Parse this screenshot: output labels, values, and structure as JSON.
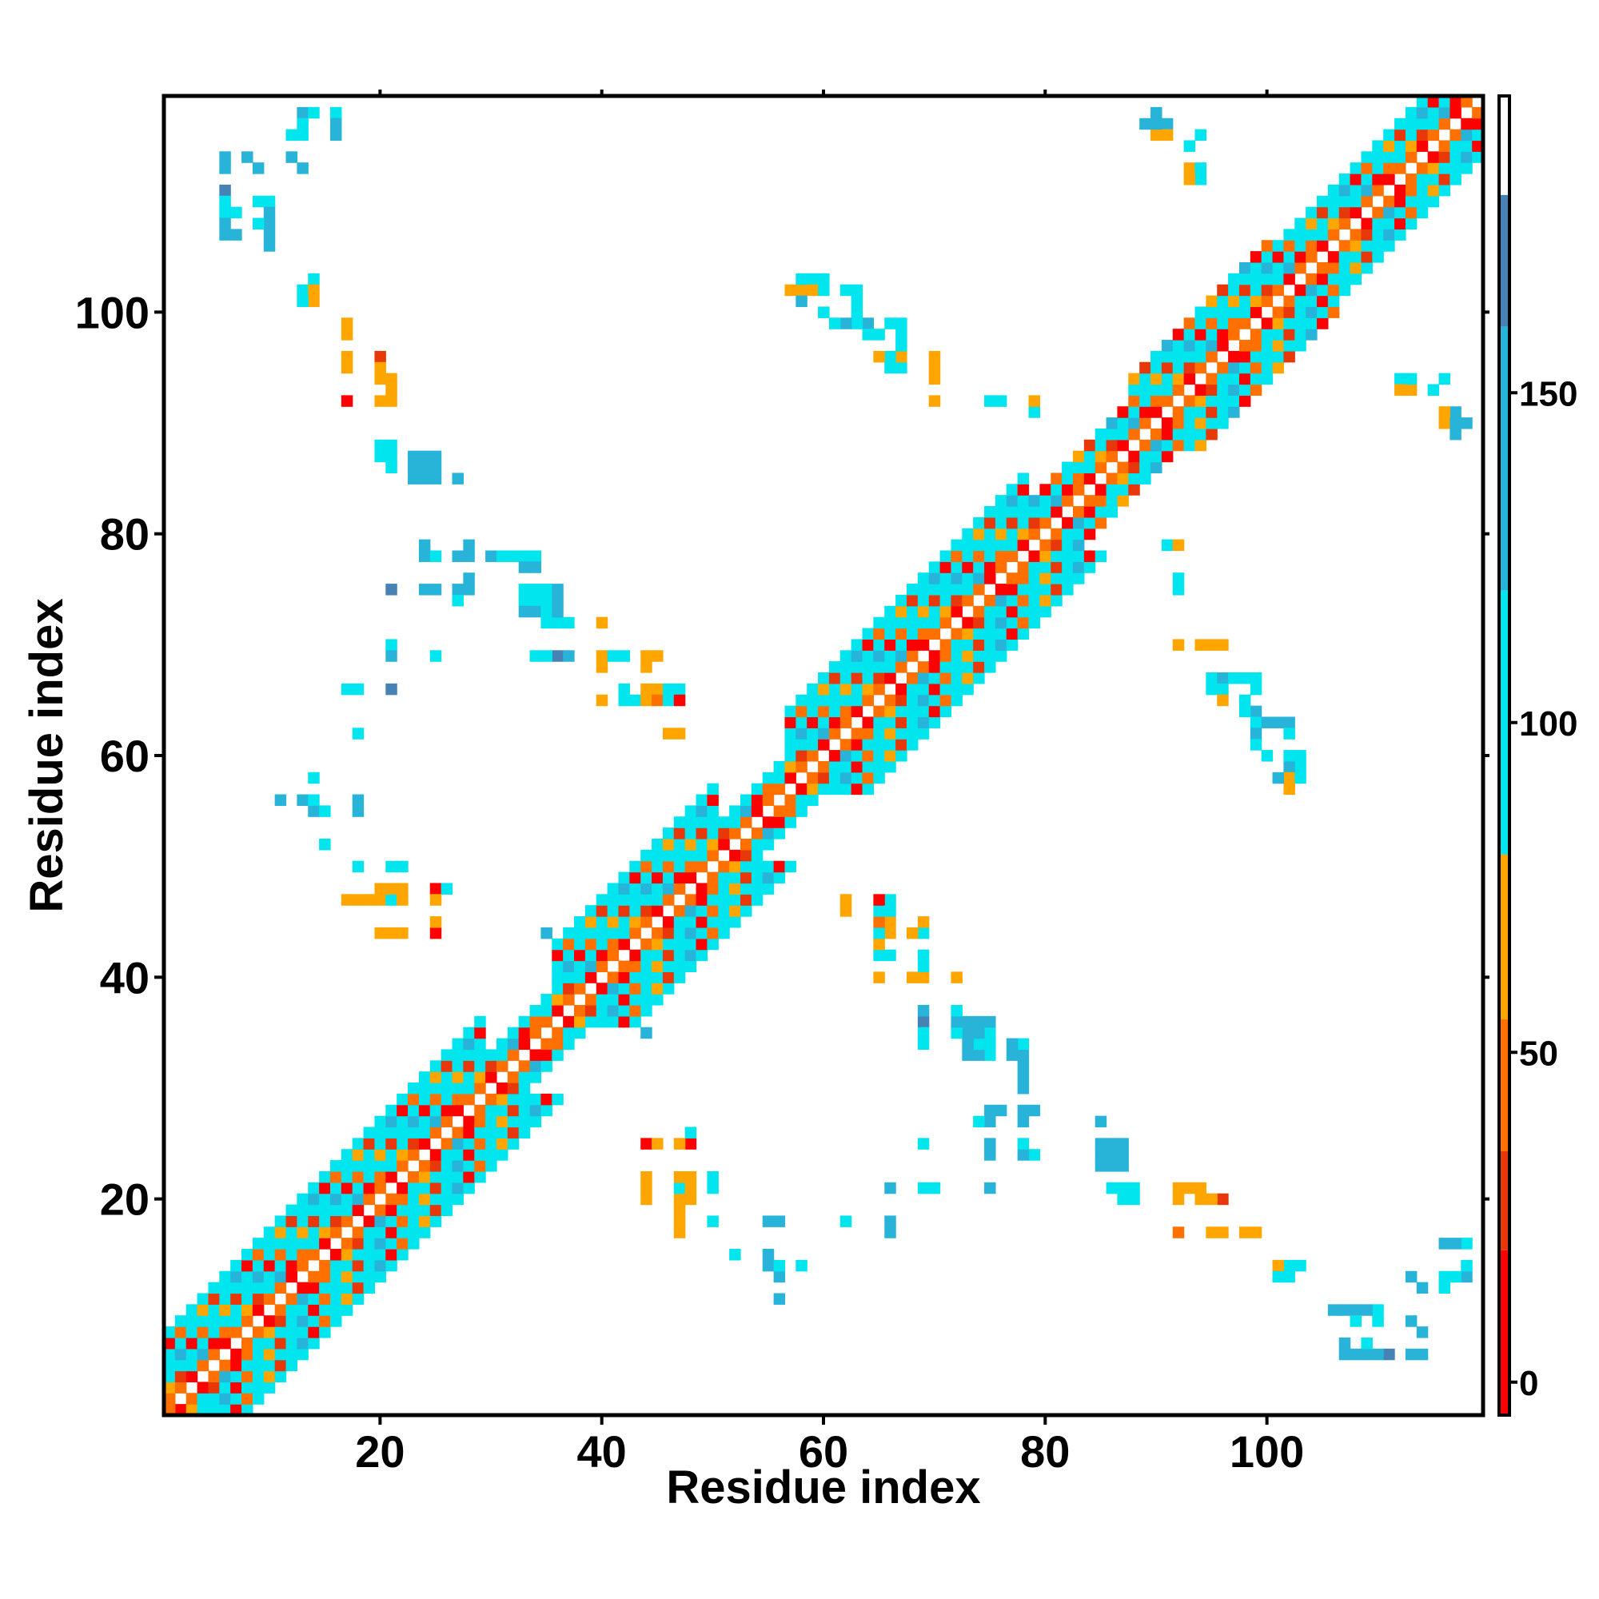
{
  "chart_data": {
    "type": "heatmap",
    "title": "",
    "xlabel": "Residue index",
    "ylabel": "Residue index",
    "xlim": [
      0.5,
      119.5
    ],
    "ylim": [
      0.5,
      119.5
    ],
    "x_ticks": [
      20,
      40,
      60,
      80,
      100
    ],
    "y_ticks": [
      20,
      40,
      60,
      80,
      100
    ],
    "grid": false,
    "symmetric": true,
    "colorbar": {
      "range": [
        -5,
        195
      ],
      "ticks": [
        0,
        50,
        100,
        150
      ],
      "bins": [
        {
          "from": -5,
          "to": 20,
          "color": "#ff0000"
        },
        {
          "from": 20,
          "to": 35,
          "color": "#e8380a"
        },
        {
          "from": 35,
          "to": 55,
          "color": "#ff7000"
        },
        {
          "from": 55,
          "to": 80,
          "color": "#ffa500"
        },
        {
          "from": 80,
          "to": 120,
          "color": "#00e5ee"
        },
        {
          "from": 120,
          "to": 160,
          "color": "#28b4d8"
        },
        {
          "from": 160,
          "to": 180,
          "color": "#4682b4"
        },
        {
          "from": 180,
          "to": 195,
          "color": "#ffffff"
        }
      ]
    },
    "band": {
      "segments": [
        {
          "from": 1,
          "to": 29,
          "width": 7
        },
        {
          "from": 29,
          "to": 36,
          "width": 3
        },
        {
          "from": 36,
          "to": 50,
          "width": 7
        },
        {
          "from": 50,
          "to": 57,
          "width": 3
        },
        {
          "from": 57,
          "to": 78,
          "width": 7
        },
        {
          "from": 78,
          "to": 88,
          "width": 4
        },
        {
          "from": 88,
          "to": 100,
          "width": 6
        },
        {
          "from": 100,
          "to": 119,
          "width": 5
        }
      ]
    },
    "contacts": [
      [
        1,
        1,
        40
      ],
      [
        2,
        1,
        5
      ],
      [
        3,
        1,
        60
      ],
      [
        4,
        2,
        100
      ],
      [
        5,
        3,
        30
      ],
      [
        13,
        118,
        140
      ],
      [
        14,
        118,
        110
      ],
      [
        16,
        118,
        110
      ],
      [
        13,
        117,
        110
      ],
      [
        6,
        114,
        150
      ],
      [
        8,
        114,
        150
      ],
      [
        12,
        114,
        150
      ],
      [
        6,
        111,
        160
      ],
      [
        6,
        110,
        110
      ],
      [
        6,
        109,
        110
      ],
      [
        7,
        109,
        110
      ],
      [
        9,
        110,
        110
      ],
      [
        10,
        110,
        110
      ],
      [
        10,
        109,
        150
      ],
      [
        10,
        108,
        150
      ],
      [
        13,
        102,
        110
      ],
      [
        14,
        103,
        95
      ],
      [
        14,
        102,
        60
      ],
      [
        17,
        99,
        60
      ],
      [
        17,
        96,
        60
      ],
      [
        17,
        95,
        60
      ],
      [
        20,
        96,
        30
      ],
      [
        20,
        94,
        75
      ],
      [
        21,
        94,
        75
      ],
      [
        17,
        92,
        10
      ],
      [
        20,
        92,
        60
      ],
      [
        21,
        92,
        60
      ],
      [
        20,
        88,
        110
      ],
      [
        20,
        87,
        110
      ],
      [
        21,
        87,
        110
      ],
      [
        23,
        87,
        140
      ],
      [
        24,
        87,
        140
      ],
      [
        23,
        86,
        140
      ],
      [
        24,
        86,
        140
      ],
      [
        23,
        85,
        140
      ],
      [
        24,
        85,
        140
      ],
      [
        27,
        85,
        150
      ],
      [
        24,
        79,
        140
      ],
      [
        24,
        78,
        140
      ],
      [
        25,
        78,
        110
      ],
      [
        27,
        78,
        140
      ],
      [
        28,
        78,
        140
      ],
      [
        28,
        79,
        140
      ],
      [
        30,
        78,
        150
      ],
      [
        31,
        78,
        110
      ],
      [
        32,
        78,
        110
      ],
      [
        33,
        78,
        110
      ],
      [
        34,
        78,
        110
      ],
      [
        33,
        77,
        150
      ],
      [
        21,
        75,
        160
      ],
      [
        24,
        75,
        140
      ],
      [
        25,
        75,
        140
      ],
      [
        27,
        75,
        150
      ],
      [
        27,
        74,
        100
      ],
      [
        33,
        75,
        110
      ],
      [
        34,
        75,
        110
      ],
      [
        35,
        75,
        110
      ],
      [
        33,
        74,
        110
      ],
      [
        34,
        74,
        110
      ],
      [
        35,
        74,
        110
      ],
      [
        33,
        73,
        150
      ],
      [
        34,
        73,
        150
      ],
      [
        35,
        73,
        110
      ],
      [
        35,
        72,
        110
      ],
      [
        36,
        72,
        110
      ],
      [
        40,
        72,
        60
      ],
      [
        21,
        70,
        110
      ],
      [
        21,
        69,
        140
      ],
      [
        25,
        69,
        110
      ],
      [
        34,
        69,
        110
      ],
      [
        36,
        69,
        160
      ],
      [
        40,
        69,
        60
      ],
      [
        40,
        68,
        60
      ],
      [
        42,
        69,
        110
      ],
      [
        44,
        69,
        60
      ],
      [
        45,
        69,
        60
      ],
      [
        44,
        68,
        60
      ],
      [
        17,
        66,
        110
      ],
      [
        18,
        66,
        110
      ],
      [
        21,
        66,
        160
      ],
      [
        44,
        66,
        60
      ],
      [
        45,
        66,
        60
      ],
      [
        47,
        66,
        110
      ],
      [
        40,
        65,
        60
      ],
      [
        42,
        65,
        110
      ],
      [
        43,
        65,
        110
      ],
      [
        44,
        65,
        60
      ],
      [
        45,
        65,
        40
      ],
      [
        46,
        65,
        110
      ],
      [
        47,
        65,
        10
      ],
      [
        18,
        62,
        110
      ],
      [
        46,
        62,
        60
      ],
      [
        47,
        62,
        60
      ],
      [
        13,
        56,
        140
      ],
      [
        14,
        55,
        150
      ],
      [
        15,
        55,
        110
      ],
      [
        18,
        55,
        150
      ],
      [
        14,
        58,
        110
      ],
      [
        15,
        52,
        110
      ],
      [
        18,
        50,
        110
      ],
      [
        21,
        50,
        110
      ],
      [
        17,
        47,
        60
      ],
      [
        18,
        47,
        60
      ],
      [
        20,
        47,
        60
      ],
      [
        21,
        47,
        110
      ],
      [
        22,
        47,
        60
      ],
      [
        20,
        48,
        60
      ],
      [
        22,
        48,
        60
      ],
      [
        25,
        48,
        10
      ],
      [
        26,
        48,
        110
      ],
      [
        25,
        47,
        60
      ],
      [
        20,
        44,
        60
      ],
      [
        21,
        44,
        60
      ],
      [
        22,
        44,
        60
      ],
      [
        25,
        44,
        10
      ],
      [
        25,
        45,
        60
      ],
      [
        35,
        44,
        150
      ],
      [
        44,
        25,
        10
      ],
      [
        45,
        25,
        60
      ],
      [
        47,
        25,
        60
      ],
      [
        48,
        25,
        10
      ],
      [
        48,
        26,
        110
      ],
      [
        44,
        22,
        60
      ],
      [
        44,
        21,
        60
      ],
      [
        47,
        22,
        60
      ],
      [
        47,
        21,
        110
      ],
      [
        48,
        21,
        60
      ],
      [
        50,
        22,
        110
      ],
      [
        47,
        18,
        60
      ],
      [
        47,
        19,
        60
      ],
      [
        50,
        18,
        110
      ],
      [
        56,
        18,
        150
      ],
      [
        52,
        15,
        110
      ],
      [
        55,
        15,
        150
      ],
      [
        55,
        14,
        150
      ],
      [
        56,
        14,
        110
      ],
      [
        58,
        14,
        110
      ],
      [
        56,
        11,
        150
      ],
      [
        62,
        18,
        110
      ],
      [
        66,
        18,
        140
      ],
      [
        66,
        17,
        140
      ],
      [
        66,
        21,
        140
      ],
      [
        69,
        21,
        110
      ],
      [
        70,
        21,
        110
      ],
      [
        75,
        21,
        150
      ],
      [
        69,
        25,
        110
      ],
      [
        75,
        25,
        140
      ],
      [
        75,
        24,
        140
      ],
      [
        78,
        25,
        110
      ],
      [
        78,
        24,
        150
      ],
      [
        79,
        24,
        110
      ],
      [
        75,
        28,
        150
      ],
      [
        76,
        28,
        150
      ],
      [
        78,
        28,
        150
      ],
      [
        79,
        28,
        150
      ],
      [
        78,
        27,
        150
      ],
      [
        85,
        27,
        150
      ],
      [
        85,
        25,
        140
      ],
      [
        86,
        25,
        140
      ],
      [
        87,
        25,
        140
      ],
      [
        85,
        24,
        140
      ],
      [
        86,
        24,
        140
      ],
      [
        87,
        24,
        140
      ],
      [
        86,
        21,
        110
      ],
      [
        87,
        21,
        110
      ],
      [
        88,
        21,
        110
      ],
      [
        92,
        21,
        60
      ],
      [
        93,
        21,
        60
      ],
      [
        92,
        20,
        60
      ],
      [
        95,
        20,
        60
      ],
      [
        92,
        17,
        40
      ],
      [
        95,
        17,
        60
      ],
      [
        96,
        17,
        60
      ],
      [
        98,
        17,
        60
      ],
      [
        101,
        14,
        60
      ],
      [
        102,
        14,
        110
      ],
      [
        101,
        13,
        110
      ],
      [
        106,
        10,
        150
      ],
      [
        107,
        10,
        150
      ],
      [
        108,
        10,
        150
      ],
      [
        108,
        9,
        110
      ],
      [
        107,
        7,
        140
      ],
      [
        107,
        6,
        140
      ],
      [
        108,
        6,
        140
      ],
      [
        109,
        6,
        150
      ],
      [
        110,
        6,
        150
      ],
      [
        113,
        6,
        150
      ],
      [
        113,
        9,
        150
      ],
      [
        113,
        13,
        150
      ],
      [
        116,
        16,
        140
      ],
      [
        117,
        16,
        140
      ],
      [
        116,
        13,
        110
      ],
      [
        117,
        13,
        110
      ],
      [
        116,
        12,
        110
      ],
      [
        62,
        47,
        60
      ],
      [
        65,
        47,
        10
      ],
      [
        66,
        47,
        110
      ],
      [
        62,
        46,
        60
      ],
      [
        66,
        46,
        110
      ],
      [
        65,
        44,
        110
      ],
      [
        66,
        44,
        60
      ],
      [
        65,
        43,
        60
      ],
      [
        68,
        44,
        60
      ],
      [
        69,
        44,
        110
      ],
      [
        66,
        42,
        110
      ],
      [
        65,
        40,
        60
      ],
      [
        68,
        40,
        60
      ],
      [
        69,
        40,
        60
      ],
      [
        69,
        41,
        110
      ],
      [
        72,
        40,
        60
      ],
      [
        69,
        37,
        150
      ],
      [
        69,
        35,
        110
      ],
      [
        72,
        37,
        110
      ],
      [
        72,
        36,
        140
      ],
      [
        73,
        36,
        140
      ],
      [
        74,
        36,
        140
      ],
      [
        75,
        36,
        140
      ],
      [
        73,
        35,
        140
      ],
      [
        74,
        35,
        140
      ],
      [
        75,
        35,
        110
      ],
      [
        73,
        34,
        140
      ],
      [
        74,
        34,
        110
      ],
      [
        75,
        34,
        110
      ],
      [
        73,
        33,
        140
      ],
      [
        74,
        33,
        140
      ],
      [
        75,
        33,
        110
      ],
      [
        77,
        34,
        140
      ],
      [
        78,
        34,
        110
      ],
      [
        78,
        33,
        140
      ],
      [
        78,
        32,
        150
      ],
      [
        78,
        31,
        150
      ],
      [
        91,
        79,
        110
      ],
      [
        92,
        79,
        60
      ],
      [
        92,
        76,
        110
      ],
      [
        92,
        70,
        60
      ],
      [
        94,
        70,
        60
      ],
      [
        95,
        70,
        60
      ],
      [
        95,
        67,
        110
      ],
      [
        96,
        67,
        140
      ],
      [
        97,
        67,
        110
      ],
      [
        98,
        67,
        110
      ],
      [
        99,
        67,
        110
      ],
      [
        95,
        66,
        110
      ],
      [
        99,
        66,
        110
      ],
      [
        99,
        64,
        140
      ],
      [
        99,
        63,
        110
      ],
      [
        100,
        63,
        140
      ],
      [
        101,
        63,
        140
      ],
      [
        102,
        63,
        140
      ],
      [
        99,
        62,
        150
      ],
      [
        102,
        62,
        110
      ],
      [
        100,
        60,
        110
      ],
      [
        103,
        60,
        110
      ],
      [
        103,
        59,
        110
      ],
      [
        102,
        59,
        140
      ],
      [
        102,
        58,
        60
      ],
      [
        58,
        103,
        110
      ],
      [
        59,
        103,
        110
      ],
      [
        60,
        103,
        110
      ],
      [
        57,
        102,
        60
      ],
      [
        58,
        102,
        60
      ],
      [
        59,
        102,
        60
      ],
      [
        60,
        102,
        110
      ],
      [
        58,
        101,
        150
      ],
      [
        62,
        102,
        110
      ],
      [
        63,
        102,
        110
      ],
      [
        63,
        101,
        110
      ],
      [
        63,
        100,
        110
      ],
      [
        63,
        99,
        110
      ],
      [
        64,
        98,
        110
      ],
      [
        65,
        98,
        110
      ],
      [
        61,
        99,
        110
      ],
      [
        66,
        99,
        110
      ],
      [
        67,
        99,
        110
      ],
      [
        67,
        98,
        110
      ],
      [
        67,
        97,
        110
      ],
      [
        67,
        96,
        60
      ],
      [
        66,
        96,
        110
      ],
      [
        65,
        96,
        60
      ],
      [
        70,
        96,
        60
      ],
      [
        70,
        95,
        60
      ],
      [
        70,
        92,
        60
      ],
      [
        75,
        92,
        110
      ],
      [
        79,
        92,
        60
      ],
      [
        79,
        91,
        110
      ],
      [
        90,
        118,
        150
      ],
      [
        91,
        117,
        150
      ],
      [
        91,
        116,
        60
      ],
      [
        94,
        116,
        110
      ],
      [
        93,
        113,
        60
      ],
      [
        94,
        113,
        110
      ],
      [
        112,
        94,
        110
      ],
      [
        112,
        93,
        60
      ],
      [
        115,
        93,
        110
      ],
      [
        116,
        90,
        60
      ],
      [
        117,
        90,
        150
      ],
      [
        118,
        90,
        140
      ],
      [
        117,
        89,
        150
      ]
    ]
  }
}
